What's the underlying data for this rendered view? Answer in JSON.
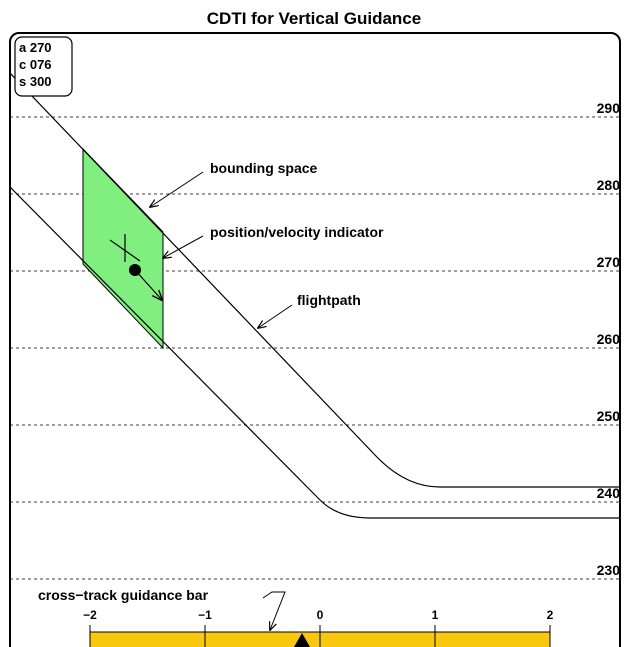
{
  "title": "CDTI for Vertical Guidance",
  "info_box": [
    "a 270",
    "c 076",
    "s 300"
  ],
  "altitude_labels": [
    "290",
    "280",
    "270",
    "260",
    "250",
    "240",
    "230"
  ],
  "annotations": {
    "bounding_space": "bounding space",
    "indicator": "position/velocity indicator",
    "flightpath": "flightpath",
    "guidance_bar": "cross−track guidance bar"
  },
  "guidance_ticks": [
    "−2",
    "−1",
    "0",
    "1",
    "2"
  ]
}
